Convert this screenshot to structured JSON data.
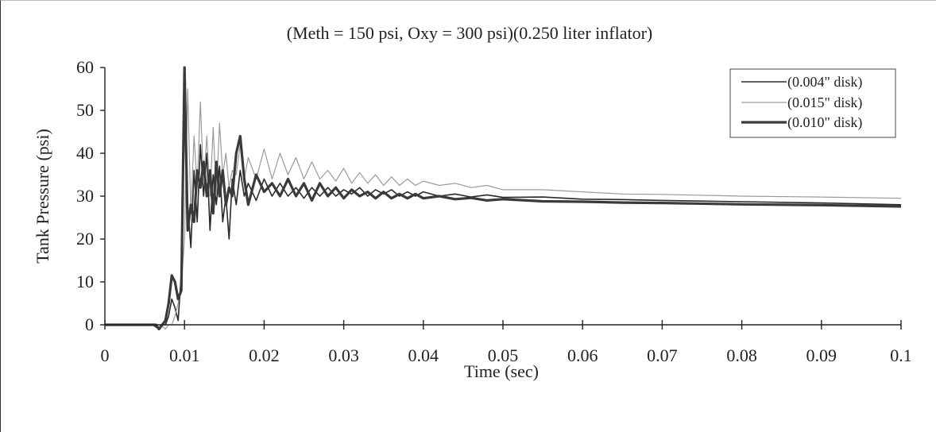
{
  "chart_data": {
    "type": "line",
    "title": "(Meth = 150 psi, Oxy = 300 psi)(0.250 liter inflator)",
    "xlabel": "Time (sec)",
    "ylabel": "Tank Pressure (psi)",
    "xlim": [
      0,
      0.1
    ],
    "ylim": [
      0,
      60
    ],
    "xticks": [
      "0",
      "0.01",
      "0.02",
      "0.03",
      "0.04",
      "0.05",
      "0.06",
      "0.07",
      "0.08",
      "0.09",
      "0.1"
    ],
    "yticks": [
      "0",
      "10",
      "20",
      "30",
      "40",
      "50",
      "60"
    ],
    "grid": false,
    "legend_position": "top-right",
    "series": [
      {
        "name": "(0.004\" disk)",
        "color": "#2a2a2a",
        "width": 1.6,
        "x": [
          0,
          0.006,
          0.0068,
          0.0072,
          0.0076,
          0.008,
          0.0084,
          0.0088,
          0.0092,
          0.0096,
          0.01,
          0.0104,
          0.0108,
          0.0112,
          0.0116,
          0.012,
          0.0124,
          0.0128,
          0.0132,
          0.0136,
          0.014,
          0.0144,
          0.0148,
          0.0152,
          0.0156,
          0.016,
          0.0165,
          0.017,
          0.0175,
          0.018,
          0.019,
          0.02,
          0.021,
          0.022,
          0.023,
          0.024,
          0.025,
          0.026,
          0.027,
          0.028,
          0.029,
          0.03,
          0.031,
          0.032,
          0.033,
          0.034,
          0.035,
          0.036,
          0.037,
          0.038,
          0.039,
          0.04,
          0.042,
          0.044,
          0.046,
          0.048,
          0.05,
          0.055,
          0.06,
          0.065,
          0.07,
          0.08,
          0.09,
          0.1
        ],
        "y": [
          0,
          0,
          -1,
          0,
          0,
          2,
          6,
          4,
          1,
          12,
          58,
          28,
          18,
          36,
          24,
          42,
          30,
          40,
          22,
          35,
          28,
          37,
          24,
          30,
          20,
          34,
          28,
          36,
          30,
          33,
          29,
          34,
          30,
          33,
          30,
          32,
          29.5,
          32,
          30,
          32,
          30,
          31.5,
          30.5,
          32,
          30,
          31.5,
          30.5,
          31.5,
          30,
          31,
          30,
          31,
          30,
          30.5,
          29.8,
          30.3,
          29.7,
          29.8,
          29.3,
          29.2,
          29,
          28.7,
          28.4,
          28
        ]
      },
      {
        "name": "(0.015\" disk)",
        "color": "#9a9a9a",
        "width": 1.2,
        "x": [
          0,
          0.007,
          0.0076,
          0.008,
          0.0084,
          0.0088,
          0.0092,
          0.0096,
          0.01,
          0.0104,
          0.0108,
          0.0112,
          0.0116,
          0.012,
          0.0124,
          0.0128,
          0.0132,
          0.0136,
          0.014,
          0.0144,
          0.0148,
          0.0152,
          0.0156,
          0.016,
          0.0165,
          0.017,
          0.0175,
          0.018,
          0.019,
          0.02,
          0.021,
          0.022,
          0.023,
          0.024,
          0.025,
          0.026,
          0.027,
          0.028,
          0.029,
          0.03,
          0.031,
          0.032,
          0.033,
          0.034,
          0.035,
          0.036,
          0.037,
          0.038,
          0.039,
          0.04,
          0.042,
          0.044,
          0.046,
          0.048,
          0.05,
          0.055,
          0.06,
          0.065,
          0.07,
          0.08,
          0.09,
          0.1
        ],
        "y": [
          0,
          0,
          -1,
          0,
          0,
          2,
          5,
          9,
          20,
          55,
          26,
          44,
          32,
          52,
          33,
          44,
          30,
          46,
          30,
          47,
          35,
          40,
          32,
          36,
          35,
          42,
          34,
          39,
          34,
          41,
          34,
          40,
          35,
          39,
          34,
          38,
          34,
          36,
          33.5,
          36.5,
          33,
          35.5,
          33,
          35,
          32.5,
          34.5,
          32.5,
          34,
          32.5,
          33.5,
          32.5,
          33,
          32,
          32.5,
          31.5,
          31.5,
          31,
          30.5,
          30.4,
          30,
          29.8,
          29.5
        ]
      },
      {
        "name": "(0.010\" disk)",
        "color": "#3a3a3a",
        "width": 3.2,
        "x": [
          0,
          0.0064,
          0.0068,
          0.0072,
          0.0076,
          0.008,
          0.0084,
          0.0088,
          0.0092,
          0.0096,
          0.01,
          0.0104,
          0.0108,
          0.0112,
          0.0116,
          0.012,
          0.0124,
          0.0128,
          0.0132,
          0.0136,
          0.014,
          0.0144,
          0.0148,
          0.0152,
          0.0156,
          0.016,
          0.0165,
          0.017,
          0.0175,
          0.018,
          0.019,
          0.02,
          0.021,
          0.022,
          0.023,
          0.024,
          0.025,
          0.026,
          0.027,
          0.028,
          0.029,
          0.03,
          0.031,
          0.032,
          0.033,
          0.034,
          0.035,
          0.036,
          0.037,
          0.038,
          0.039,
          0.04,
          0.042,
          0.044,
          0.046,
          0.048,
          0.05,
          0.055,
          0.06,
          0.065,
          0.07,
          0.08,
          0.09,
          0.1
        ],
        "y": [
          0,
          0,
          -1,
          0,
          1,
          5,
          11.5,
          10,
          6,
          8,
          60,
          22,
          28,
          24,
          36,
          32,
          38,
          30,
          36,
          26,
          38,
          30,
          36,
          28,
          32,
          30,
          40,
          44,
          34,
          28,
          35,
          31,
          33,
          30,
          34,
          30,
          33,
          29,
          33,
          30,
          32,
          29.5,
          31.5,
          30,
          31,
          29.5,
          31,
          29.5,
          30.5,
          29.5,
          30.5,
          29.5,
          30,
          29.3,
          29.6,
          29,
          29.3,
          28.8,
          28.7,
          28.5,
          28.4,
          28.1,
          27.9,
          27.6
        ]
      }
    ]
  }
}
